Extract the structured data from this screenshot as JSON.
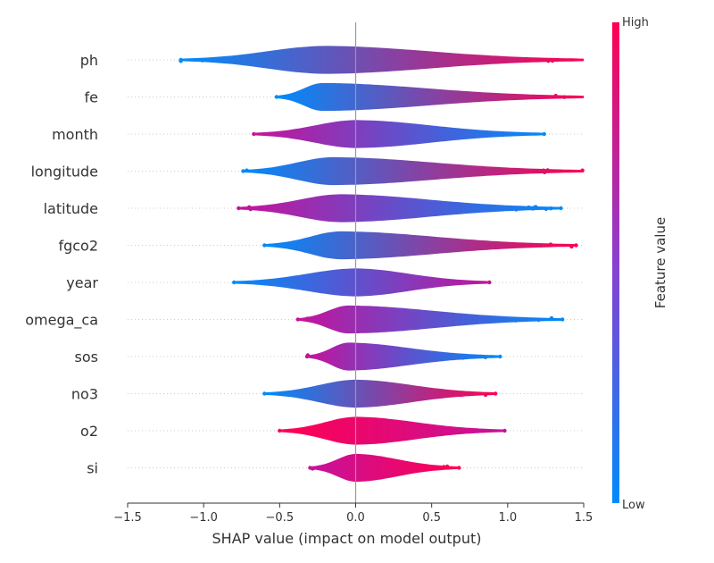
{
  "chart_data": {
    "type": "violin",
    "xlabel": "SHAP value (impact on model output)",
    "xlim": [
      -1.5,
      1.5
    ],
    "xticks": [
      -1.5,
      -1.0,
      -0.5,
      0.0,
      0.5,
      1.0,
      1.5
    ],
    "xtick_labels": [
      "−1.5",
      "−1.0",
      "−0.5",
      "0.0",
      "0.5",
      "1.0",
      "1.5"
    ],
    "colorbar": {
      "title": "Feature value",
      "high_label": "High",
      "low_label": "Low",
      "high_color": "#ff0052",
      "low_color": "#008bfb"
    },
    "features": [
      {
        "name": "ph",
        "min": -1.15,
        "max": 1.5,
        "peak": -0.2,
        "left_color": "#008bfb",
        "right_color": "#ff0052"
      },
      {
        "name": "fe",
        "min": -0.52,
        "max": 1.5,
        "peak": -0.22,
        "left_color": "#008bfb",
        "right_color": "#ff0052"
      },
      {
        "name": "month",
        "min": -0.67,
        "max": 1.24,
        "peak": 0.0,
        "left_color": "#c5139b",
        "right_color": "#008bfb"
      },
      {
        "name": "longitude",
        "min": -0.74,
        "max": 1.5,
        "peak": -0.15,
        "left_color": "#008bfb",
        "right_color": "#ff0052"
      },
      {
        "name": "latitude",
        "min": -0.77,
        "max": 1.35,
        "peak": -0.1,
        "left_color": "#c5139b",
        "right_color": "#008bfb"
      },
      {
        "name": "fgco2",
        "min": -0.6,
        "max": 1.45,
        "peak": -0.1,
        "left_color": "#008bfb",
        "right_color": "#ff0052"
      },
      {
        "name": "year",
        "min": -0.8,
        "max": 0.88,
        "peak": 0.0,
        "left_color": "#008bfb",
        "right_color": "#c5139b"
      },
      {
        "name": "omega_ca",
        "min": -0.38,
        "max": 1.36,
        "peak": -0.05,
        "left_color": "#c5139b",
        "right_color": "#008bfb"
      },
      {
        "name": "sos",
        "min": -0.32,
        "max": 0.95,
        "peak": -0.05,
        "left_color": "#c5139b",
        "right_color": "#008bfb"
      },
      {
        "name": "no3",
        "min": -0.6,
        "max": 0.92,
        "peak": 0.0,
        "left_color": "#008bfb",
        "right_color": "#ff0052"
      },
      {
        "name": "o2",
        "min": -0.5,
        "max": 0.98,
        "peak": 0.0,
        "left_color": "#ff0052",
        "right_color": "#c5139b"
      },
      {
        "name": "si",
        "min": -0.3,
        "max": 0.68,
        "peak": 0.0,
        "left_color": "#c5139b",
        "right_color": "#ff0052"
      }
    ]
  }
}
